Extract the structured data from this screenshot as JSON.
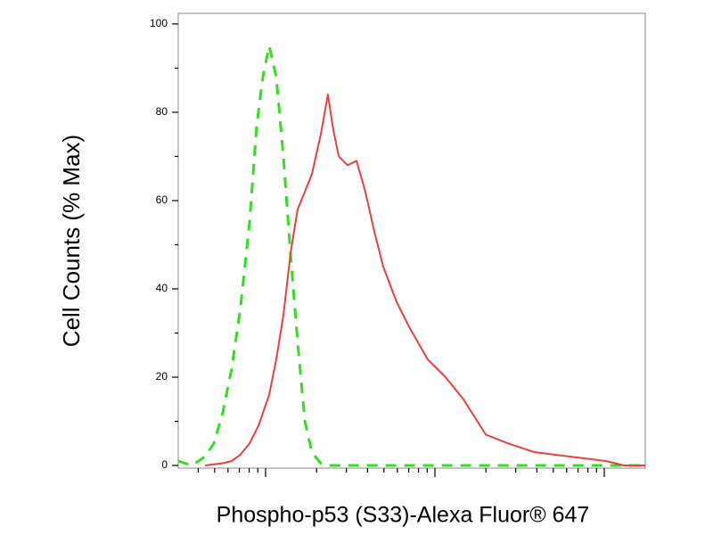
{
  "chart_data": {
    "type": "line",
    "x_label": "Phospho-p53 (S33)-Alexa Fluor® 647",
    "y_label": "Cell Counts (% Max)",
    "xscale": "log",
    "xlim": [
      30.5,
      17460
    ],
    "xticks": [
      100,
      1000,
      10000
    ],
    "xminorticks": [
      40,
      50,
      60,
      70,
      80,
      90,
      200,
      300,
      400,
      500,
      600,
      700,
      800,
      900,
      2000,
      3000,
      4000,
      5000,
      6000,
      7000,
      8000,
      9000
    ],
    "ylim": [
      -0.6,
      102.4
    ],
    "yticks": [
      0,
      20,
      40,
      60,
      80,
      100
    ],
    "yminorticks": [
      10,
      30,
      50,
      70,
      90
    ],
    "series": [
      {
        "color": "#33dd22",
        "dash": true,
        "x": [
          30.5,
          36.6,
          43.9,
          49.5,
          55.9,
          63.1,
          71.2,
          80.4,
          88.6,
          96.4,
          105,
          115.6,
          127.4,
          140.3,
          154.5,
          170.6,
          187.8,
          211.8,
          239.3,
          438.5,
          1156,
          3882,
          13060,
          17460
        ],
        "values": [
          1,
          0,
          2,
          5,
          12,
          22,
          36,
          55,
          77,
          88,
          95,
          88,
          70,
          48,
          28,
          10,
          3,
          0.5,
          0,
          0,
          0,
          0,
          0,
          0
        ]
      },
      {
        "color": "#e8413c",
        "dash": false,
        "x": [
          43.9,
          55.9,
          63.1,
          71.2,
          80.4,
          90.8,
          105,
          115.6,
          127.4,
          140.3,
          154.5,
          170.6,
          187.8,
          211.8,
          233.3,
          251.2,
          270.4,
          304.8,
          344.4,
          388.2,
          438.5,
          495.5,
          594.3,
          712.8,
          907.8,
          1156,
          1472,
          1995,
          2704,
          3882,
          6310,
          10250,
          13060,
          17460
        ],
        "values": [
          0,
          0.5,
          1,
          2.5,
          5,
          9,
          16,
          24,
          34,
          48,
          58,
          62,
          66,
          75,
          84,
          76,
          70,
          68,
          69,
          62,
          53,
          45,
          37,
          31,
          24,
          20,
          15,
          7,
          5,
          3,
          2,
          1,
          0,
          0
        ]
      }
    ]
  }
}
